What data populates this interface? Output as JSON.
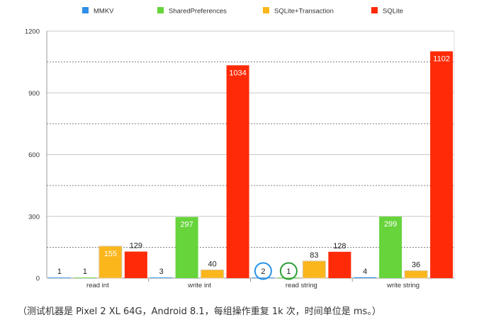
{
  "chart_data": {
    "type": "bar",
    "categories": [
      "read int",
      "write int",
      "read string",
      "write string"
    ],
    "series": [
      {
        "name": "MMKV",
        "color": "#2f8fe6",
        "values": [
          1,
          3,
          2,
          4
        ]
      },
      {
        "name": "SharedPreferences",
        "color": "#66d43a",
        "values": [
          1,
          297,
          1,
          299
        ]
      },
      {
        "name": "SQLite+Transaction",
        "color": "#fbb61c",
        "values": [
          155,
          40,
          83,
          36
        ]
      },
      {
        "name": "SQLite",
        "color": "#ff2a07",
        "values": [
          129,
          1034,
          128,
          1102
        ]
      }
    ],
    "yticks": [
      0,
      300,
      600,
      900,
      1200
    ],
    "ylim": [
      0,
      1200
    ],
    "grid": true,
    "legend_position": "top",
    "annotations": [
      {
        "category": "read string",
        "series": "MMKV",
        "shape": "circle",
        "color": "#2a93e8"
      },
      {
        "category": "read string",
        "series": "SharedPreferences",
        "shape": "circle",
        "color": "#2e9e39"
      }
    ]
  },
  "caption": "（测试机器是 Pixel 2 XL 64G，Android 8.1，每组操作重复 1k 次，时间单位是 ms。）"
}
